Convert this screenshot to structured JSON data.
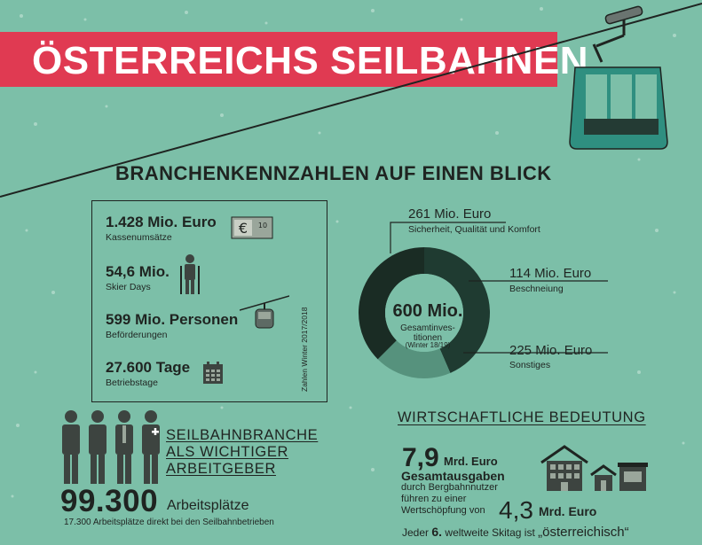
{
  "title": "ÖSTERREICHS SEILBAHNEN",
  "subtitle": "BRANCHENKENNZAHLEN AUF EINEN BLICK",
  "kpis": [
    {
      "value": "1.428 Mio. Euro",
      "label": "Kassenumsätze",
      "icon": "euro-banknote-icon"
    },
    {
      "value": "54,6 Mio.",
      "label": "Skier Days",
      "icon": "skier-icon"
    },
    {
      "value": "599 Mio. Personen",
      "label": "Beförderungen",
      "icon": "gondola-icon"
    },
    {
      "value": "27.600 Tage",
      "label": "Betriebstage",
      "icon": "calendar-icon"
    }
  ],
  "kpi_note": "Zahlen Winter 2017/2018",
  "chart_data": {
    "type": "pie",
    "style": "donut",
    "total": {
      "value": "600 Mio.",
      "label": "Gesamtinves-titionen",
      "sub": "(Winter 18/19)"
    },
    "values": [
      261,
      114,
      225
    ],
    "value_labels": [
      "261 Mio. Euro",
      "114 Mio. Euro",
      "225 Mio. Euro"
    ],
    "categories": [
      "Sicherheit, Qualität und Komfort",
      "Beschneiung",
      "Sonstiges"
    ],
    "colors": [
      "#1f3b31",
      "#56927d",
      "#1a2c24"
    ]
  },
  "employment": {
    "title_lines": [
      "SEILBAHNBRANCHE",
      "ALS WICHTIGER",
      "ARBEITGEBER"
    ],
    "value": "99.300",
    "unit": "Arbeitsplätze",
    "note": "17.300 Arbeitsplätze direkt bei den Seilbahnbetrieben"
  },
  "economy": {
    "title": "WIRTSCHAFTLICHE BEDEUTUNG",
    "value1": "7,9",
    "unit1": "Mrd. Euro",
    "label1": "Gesamtausgaben",
    "text_lines": [
      "durch Bergbahnnutzer",
      "führen zu einer",
      "Wertschöpfung von"
    ],
    "value2": "4,3",
    "unit2": "Mrd. Euro",
    "footer_pre": "Jeder",
    "footer_num": "6.",
    "footer_mid": "weltweite Skitag ist",
    "footer_quote": "„österreichisch“"
  },
  "colors": {
    "background": "#7cbfa8",
    "banner": "#e03a52",
    "ink": "#1f2421",
    "gondola": "#2f8f80"
  }
}
